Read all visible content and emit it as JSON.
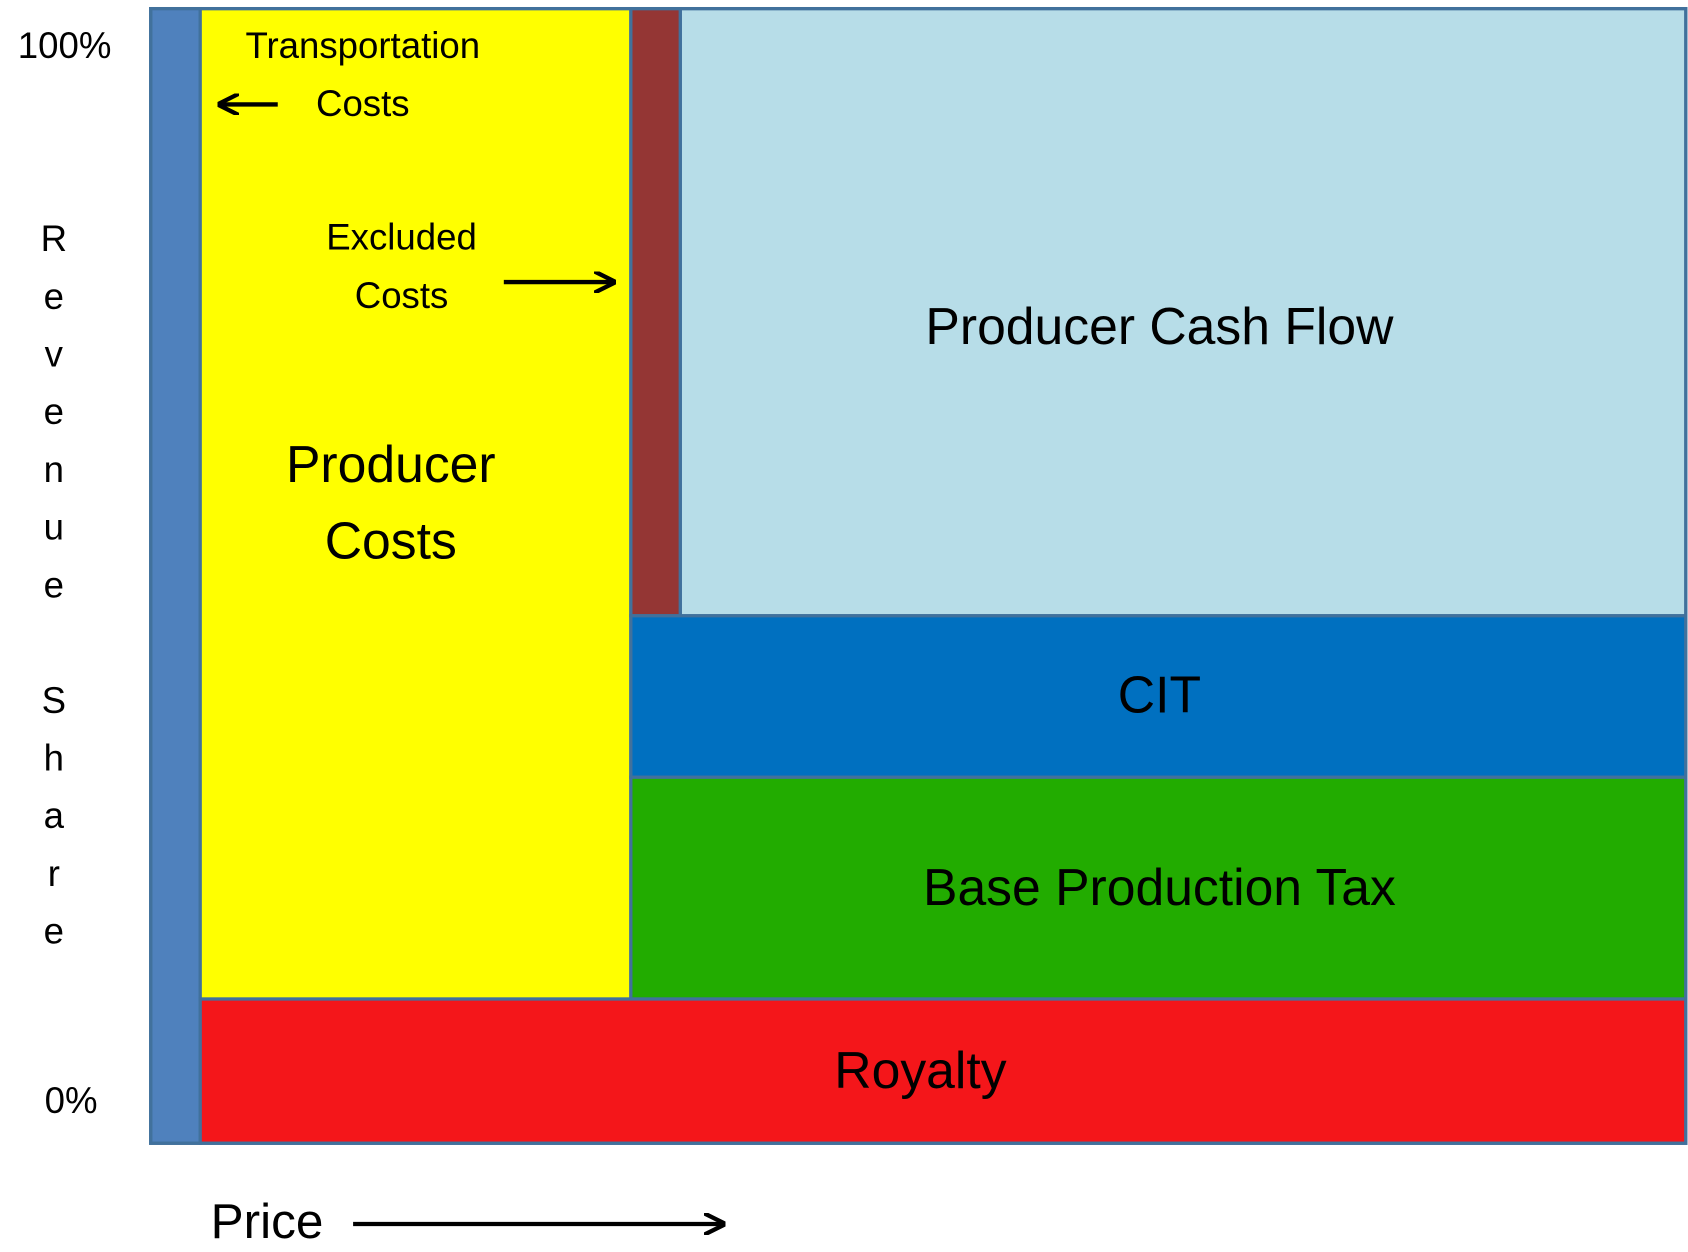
{
  "axis": {
    "top_label": "100%",
    "bottom_label": "0%",
    "y_label": "Revenue Share",
    "x_label": "Price"
  },
  "regions": {
    "transportation": [
      "Transportation",
      "Costs"
    ],
    "excluded": [
      "Excluded",
      "Costs"
    ],
    "producer_costs": [
      "Producer",
      "Costs"
    ],
    "cash_flow": "Producer Cash Flow",
    "cit": "CIT",
    "base_tax": "Base Production Tax",
    "royalty": "Royalty"
  }
}
